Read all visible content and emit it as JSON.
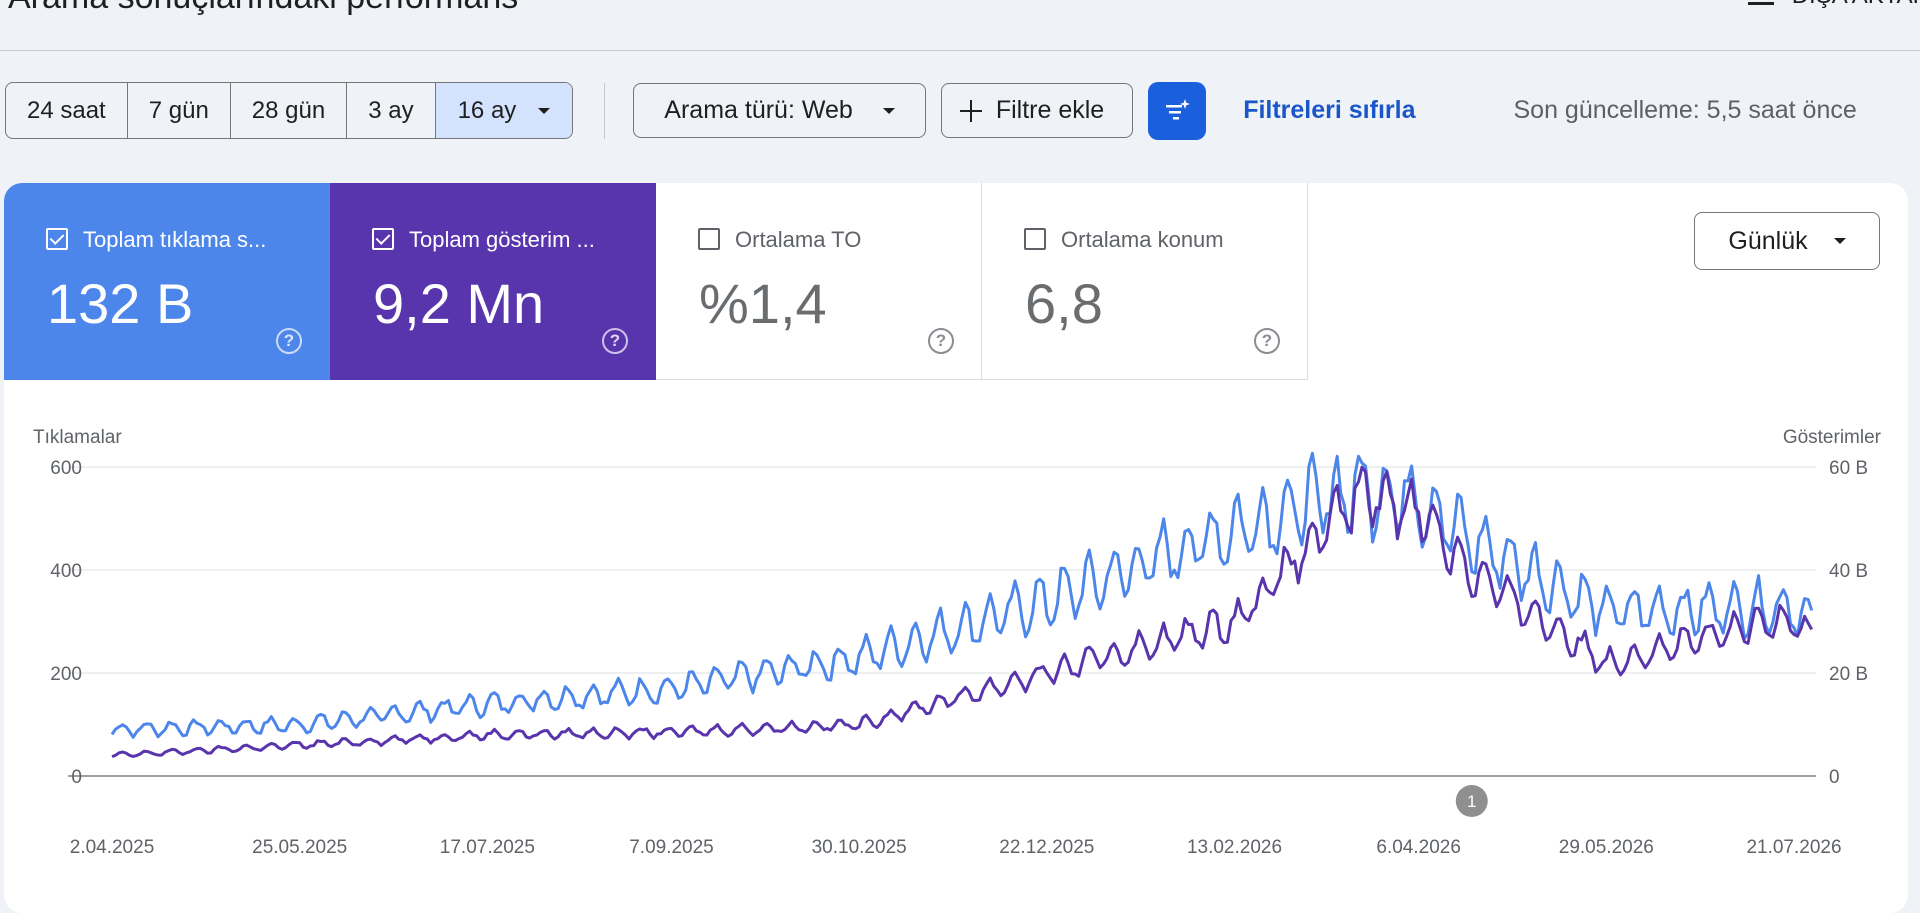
{
  "page": {
    "title": "Arama sonuçlarındaki performans",
    "export_label": "DIŞA AKTAR"
  },
  "toolbar": {
    "date_ranges": [
      "24 saat",
      "7 gün",
      "28 gün",
      "3 ay",
      "16 ay"
    ],
    "active_range": "16 ay",
    "search_type": "Arama türü: Web",
    "add_filter": "Filtre ekle",
    "reset_filters": "Filtreleri sıfırla",
    "last_update": "Son güncelleme: 5,5 saat önce"
  },
  "metrics": [
    {
      "label": "Toplam tıklama s...",
      "value": "132 B",
      "checked": true,
      "color": "#4d86ea"
    },
    {
      "label": "Toplam gösterim ...",
      "value": "9,2 Mn",
      "checked": true,
      "color": "#5834ad"
    },
    {
      "label": "Ortalama TO",
      "value": "%1,4",
      "checked": false
    },
    {
      "label": "Ortalama konum",
      "value": "6,8",
      "checked": false
    }
  ],
  "granularity": "Günlük",
  "chart_data": {
    "type": "line",
    "y_left_label": "Tıklamalar",
    "y_right_label": "Gösterimler",
    "y_left_ticks": [
      "600",
      "400",
      "200",
      "0"
    ],
    "y_right_ticks": [
      "60 B",
      "40 B",
      "20 B",
      "0"
    ],
    "ylim_left": [
      0,
      600
    ],
    "ylim_right": [
      0,
      60000
    ],
    "x_ticks": [
      "2.04.2025",
      "25.05.2025",
      "17.07.2025",
      "7.09.2025",
      "30.10.2025",
      "22.12.2025",
      "13.02.2026",
      "6.04.2026",
      "29.05.2026",
      "21.07.2026"
    ],
    "annotation": {
      "label": "1",
      "x": "21.04.2026"
    },
    "grid": true,
    "series": [
      {
        "name": "Tıklamalar",
        "axis": "left",
        "color": "#4d86ea",
        "x": [
          "2.04.2025",
          "25.05.2025",
          "17.07.2025",
          "7.09.2025",
          "30.10.2025",
          "22.12.2025",
          "13.02.2026",
          "21.03.2026",
          "6.04.2026",
          "20.04.2026",
          "29.05.2026",
          "21.07.2026",
          "26.07.2026"
        ],
        "values": [
          90,
          100,
          140,
          170,
          230,
          340,
          480,
          560,
          540,
          460,
          320,
          330,
          290
        ]
      },
      {
        "name": "Gösterimler",
        "axis": "right",
        "color": "#5834ad",
        "x": [
          "2.04.2025",
          "25.05.2025",
          "17.07.2025",
          "7.09.2025",
          "30.10.2025",
          "22.12.2025",
          "13.02.2026",
          "21.03.2026",
          "6.04.2026",
          "20.04.2026",
          "29.05.2026",
          "21.07.2026",
          "26.07.2026"
        ],
        "values": [
          4000,
          6000,
          8000,
          8500,
          10000,
          20000,
          30000,
          55000,
          52000,
          40000,
          22000,
          31000,
          27000
        ]
      }
    ]
  }
}
